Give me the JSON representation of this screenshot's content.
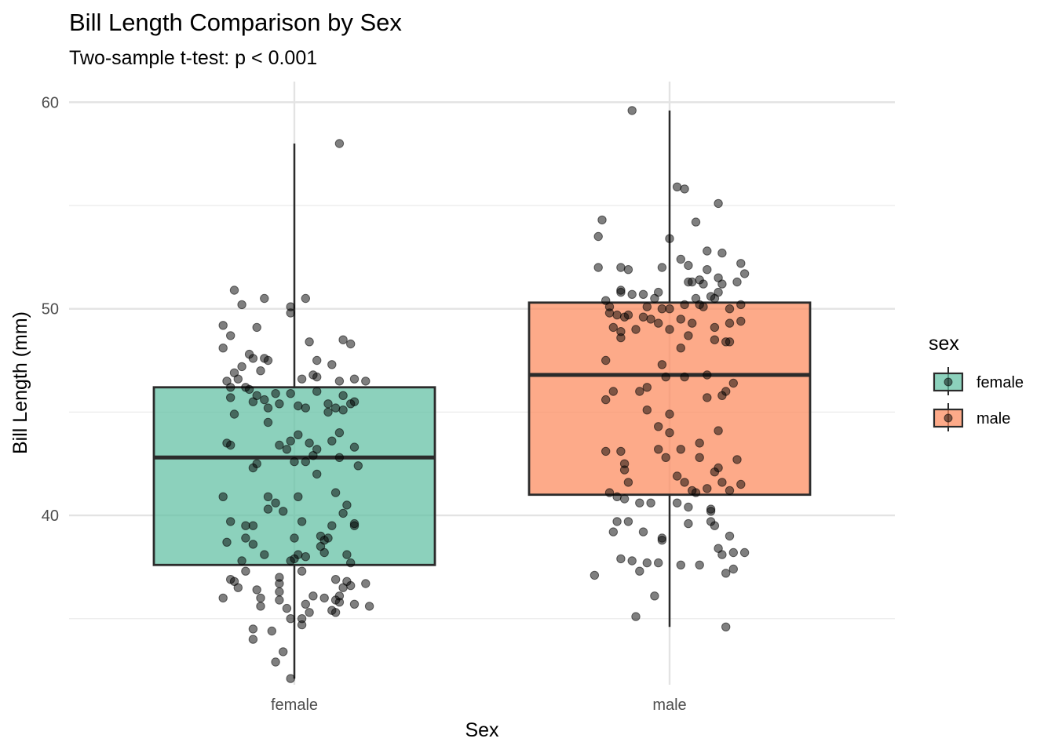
{
  "chart_data": {
    "type": "boxplot",
    "title": "Bill Length Comparison by Sex",
    "subtitle": "Two-sample t-test: p < 0.001",
    "xlabel": "Sex",
    "ylabel": "Bill Length (mm)",
    "ylim": [
      31.8,
      61.0
    ],
    "y_ticks": [
      40,
      50,
      60
    ],
    "y_minor_ticks": [
      35,
      45,
      55
    ],
    "grid": true,
    "categories": [
      "female",
      "male"
    ],
    "legend": {
      "title": "sex",
      "position": "right",
      "entries": [
        {
          "label": "female",
          "color": "#66c2a5"
        },
        {
          "label": "male",
          "color": "#fc8d62"
        }
      ]
    },
    "boxes": [
      {
        "category": "female",
        "color": "#66c2a5",
        "q1": 37.6,
        "median": 42.8,
        "q3": 46.2,
        "whisker_low": 32.1,
        "whisker_high": 58.0,
        "points": [
          [
            0.12,
            58.0
          ],
          [
            -0.16,
            50.9
          ],
          [
            -0.08,
            50.5
          ],
          [
            0.03,
            50.5
          ],
          [
            -0.14,
            50.2
          ],
          [
            -0.01,
            50.1
          ],
          [
            -0.01,
            49.8
          ],
          [
            -0.19,
            49.2
          ],
          [
            -0.1,
            49.1
          ],
          [
            -0.17,
            48.7
          ],
          [
            0.04,
            48.4
          ],
          [
            0.13,
            48.5
          ],
          [
            0.15,
            48.3
          ],
          [
            -0.19,
            48.1
          ],
          [
            -0.12,
            47.8
          ],
          [
            -0.08,
            47.6
          ],
          [
            -0.07,
            47.5
          ],
          [
            -0.11,
            47.6
          ],
          [
            0.06,
            47.5
          ],
          [
            0.1,
            47.3
          ],
          [
            -0.14,
            47.2
          ],
          [
            -0.16,
            46.9
          ],
          [
            -0.09,
            47.0
          ],
          [
            -0.15,
            46.6
          ],
          [
            -0.13,
            46.2
          ],
          [
            -0.18,
            46.5
          ],
          [
            0.02,
            46.6
          ],
          [
            0.05,
            46.8
          ],
          [
            0.06,
            46.7
          ],
          [
            0.12,
            46.5
          ],
          [
            0.16,
            46.6
          ],
          [
            0.19,
            46.5
          ],
          [
            -0.17,
            46.2
          ],
          [
            -0.12,
            46.1
          ],
          [
            -0.1,
            45.8
          ],
          [
            -0.05,
            45.9
          ],
          [
            -0.01,
            45.9
          ],
          [
            0.06,
            46.0
          ],
          [
            0.13,
            45.8
          ],
          [
            -0.17,
            45.7
          ],
          [
            -0.11,
            45.5
          ],
          [
            -0.08,
            45.6
          ],
          [
            -0.04,
            45.4
          ],
          [
            0.01,
            45.3
          ],
          [
            0.03,
            45.2
          ],
          [
            0.09,
            45.4
          ],
          [
            0.15,
            45.4
          ],
          [
            0.16,
            45.5
          ],
          [
            -0.07,
            45.2
          ],
          [
            0.11,
            45.2
          ],
          [
            0.13,
            45.1
          ],
          [
            0.09,
            45.0
          ],
          [
            -0.16,
            44.9
          ],
          [
            -0.07,
            44.5
          ],
          [
            0.12,
            44.0
          ],
          [
            0.1,
            43.6
          ],
          [
            0.01,
            43.9
          ],
          [
            0.04,
            43.5
          ],
          [
            0.06,
            43.2
          ],
          [
            0.16,
            43.3
          ],
          [
            -0.18,
            43.5
          ],
          [
            -0.17,
            43.4
          ],
          [
            -0.01,
            43.6
          ],
          [
            -0.04,
            43.4
          ],
          [
            -0.02,
            43.2
          ],
          [
            0.0,
            42.6
          ],
          [
            0.03,
            42.6
          ],
          [
            0.05,
            42.9
          ],
          [
            0.12,
            42.8
          ],
          [
            -0.1,
            42.5
          ],
          [
            -0.11,
            42.3
          ],
          [
            0.06,
            42.0
          ],
          [
            0.17,
            42.4
          ],
          [
            -0.07,
            40.9
          ],
          [
            -0.19,
            40.9
          ],
          [
            0.01,
            40.9
          ],
          [
            -0.05,
            40.6
          ],
          [
            0.14,
            40.5
          ],
          [
            -0.07,
            40.3
          ],
          [
            -0.03,
            40.2
          ],
          [
            0.11,
            41.1
          ],
          [
            0.13,
            40.1
          ],
          [
            -0.17,
            39.7
          ],
          [
            -0.13,
            39.5
          ],
          [
            -0.11,
            39.5
          ],
          [
            0.02,
            39.7
          ],
          [
            0.16,
            39.6
          ],
          [
            0.1,
            39.5
          ],
          [
            0.16,
            39.5
          ],
          [
            -0.18,
            38.7
          ],
          [
            -0.13,
            38.9
          ],
          [
            -0.11,
            38.6
          ],
          [
            0.0,
            38.9
          ],
          [
            0.07,
            39.0
          ],
          [
            0.08,
            38.8
          ],
          [
            0.09,
            38.9
          ],
          [
            -0.14,
            37.8
          ],
          [
            -0.08,
            38.1
          ],
          [
            0.01,
            38.1
          ],
          [
            0.03,
            38.0
          ],
          [
            0.07,
            38.5
          ],
          [
            0.08,
            38.2
          ],
          [
            0.14,
            38.1
          ],
          [
            -0.01,
            37.8
          ],
          [
            0.0,
            37.9
          ],
          [
            0.15,
            37.7
          ],
          [
            -0.13,
            37.3
          ],
          [
            0.02,
            37.3
          ],
          [
            -0.17,
            36.9
          ],
          [
            -0.16,
            36.8
          ],
          [
            -0.04,
            37.0
          ],
          [
            -0.04,
            36.7
          ],
          [
            0.11,
            36.9
          ],
          [
            0.14,
            36.8
          ],
          [
            0.15,
            36.6
          ],
          [
            0.19,
            36.7
          ],
          [
            -0.15,
            36.5
          ],
          [
            -0.1,
            36.4
          ],
          [
            0.13,
            36.5
          ],
          [
            -0.19,
            36.0
          ],
          [
            -0.09,
            36.0
          ],
          [
            -0.04,
            35.9
          ],
          [
            -0.04,
            36.3
          ],
          [
            0.05,
            36.1
          ],
          [
            0.08,
            36.0
          ],
          [
            0.11,
            35.9
          ],
          [
            0.12,
            35.8
          ],
          [
            0.12,
            36.1
          ],
          [
            0.16,
            35.7
          ],
          [
            0.2,
            35.6
          ],
          [
            -0.09,
            35.6
          ],
          [
            -0.02,
            35.5
          ],
          [
            0.03,
            35.7
          ],
          [
            0.1,
            35.4
          ],
          [
            0.04,
            35.3
          ],
          [
            -0.01,
            35.0
          ],
          [
            0.02,
            35.0
          ],
          [
            0.11,
            35.3
          ],
          [
            0.02,
            34.7
          ],
          [
            -0.11,
            34.5
          ],
          [
            -0.06,
            34.4
          ],
          [
            -0.11,
            34.0
          ],
          [
            -0.03,
            33.4
          ],
          [
            -0.05,
            32.9
          ],
          [
            -0.01,
            32.1
          ]
        ]
      },
      {
        "category": "male",
        "color": "#fc8d62",
        "q1": 41.0,
        "median": 46.8,
        "q3": 50.3,
        "whisker_low": 34.6,
        "whisker_high": 59.6,
        "points": [
          [
            -0.1,
            59.6
          ],
          [
            0.02,
            55.9
          ],
          [
            0.04,
            55.8
          ],
          [
            0.13,
            55.1
          ],
          [
            -0.18,
            54.3
          ],
          [
            0.07,
            54.2
          ],
          [
            -0.19,
            53.5
          ],
          [
            -0.0,
            53.4
          ],
          [
            0.03,
            52.4
          ],
          [
            0.1,
            52.8
          ],
          [
            0.14,
            52.7
          ],
          [
            -0.19,
            52.0
          ],
          [
            -0.13,
            52.0
          ],
          [
            -0.11,
            51.9
          ],
          [
            -0.02,
            52.0
          ],
          [
            0.05,
            52.1
          ],
          [
            0.1,
            51.9
          ],
          [
            0.19,
            52.2
          ],
          [
            0.2,
            51.7
          ],
          [
            0.08,
            51.4
          ],
          [
            0.05,
            51.3
          ],
          [
            0.06,
            51.3
          ],
          [
            0.09,
            51.2
          ],
          [
            0.13,
            51.5
          ],
          [
            0.14,
            51.2
          ],
          [
            0.18,
            51.3
          ],
          [
            -0.13,
            50.9
          ],
          [
            -0.13,
            50.8
          ],
          [
            -0.1,
            50.7
          ],
          [
            -0.07,
            50.7
          ],
          [
            0.13,
            50.8
          ],
          [
            -0.03,
            50.8
          ],
          [
            0.11,
            50.6
          ],
          [
            0.12,
            50.5
          ],
          [
            -0.17,
            50.4
          ],
          [
            0.07,
            50.5
          ],
          [
            -0.04,
            50.5
          ],
          [
            -0.02,
            50.0
          ],
          [
            0.0,
            50.0
          ],
          [
            -0.06,
            50.1
          ],
          [
            0.04,
            50.2
          ],
          [
            -0.16,
            50.1
          ],
          [
            0.08,
            50.2
          ],
          [
            0.09,
            50.1
          ],
          [
            0.16,
            50.0
          ],
          [
            0.19,
            50.2
          ],
          [
            -0.16,
            49.8
          ],
          [
            -0.14,
            49.7
          ],
          [
            -0.11,
            49.7
          ],
          [
            -0.12,
            49.6
          ],
          [
            -0.07,
            49.6
          ],
          [
            -0.05,
            49.5
          ],
          [
            -0.03,
            49.3
          ],
          [
            0.03,
            49.5
          ],
          [
            0.06,
            49.3
          ],
          [
            0.12,
            49.1
          ],
          [
            0.16,
            49.3
          ],
          [
            0.19,
            49.4
          ],
          [
            -0.15,
            49.1
          ],
          [
            -0.13,
            48.9
          ],
          [
            -0.13,
            48.6
          ],
          [
            -0.09,
            49.0
          ],
          [
            0.0,
            49.0
          ],
          [
            0.05,
            48.7
          ],
          [
            0.12,
            48.5
          ],
          [
            0.15,
            48.4
          ],
          [
            0.16,
            48.4
          ],
          [
            0.03,
            48.1
          ],
          [
            -0.17,
            47.5
          ],
          [
            -0.02,
            47.3
          ],
          [
            0.04,
            46.7
          ],
          [
            -0.15,
            46.0
          ],
          [
            -0.08,
            46.0
          ],
          [
            -0.06,
            46.2
          ],
          [
            -0.01,
            46.7
          ],
          [
            0.1,
            46.8
          ],
          [
            0.17,
            46.4
          ],
          [
            0.15,
            46.0
          ],
          [
            -0.17,
            45.6
          ],
          [
            0.1,
            45.7
          ],
          [
            0.14,
            45.8
          ],
          [
            -0.06,
            45.1
          ],
          [
            0.0,
            44.9
          ],
          [
            -0.03,
            44.3
          ],
          [
            0.0,
            44.0
          ],
          [
            0.13,
            44.1
          ],
          [
            0.08,
            43.5
          ],
          [
            0.03,
            43.2
          ],
          [
            -0.03,
            43.2
          ],
          [
            -0.17,
            43.1
          ],
          [
            -0.13,
            43.1
          ],
          [
            -0.01,
            42.8
          ],
          [
            0.08,
            42.8
          ],
          [
            0.18,
            42.7
          ],
          [
            0.13,
            42.3
          ],
          [
            0.12,
            42.1
          ],
          [
            -0.12,
            42.5
          ],
          [
            -0.12,
            42.2
          ],
          [
            -0.11,
            41.6
          ],
          [
            0.14,
            41.6
          ],
          [
            0.19,
            41.5
          ],
          [
            0.02,
            41.9
          ],
          [
            0.04,
            41.6
          ],
          [
            0.06,
            41.2
          ],
          [
            0.07,
            41.1
          ],
          [
            0.1,
            41.3
          ],
          [
            0.16,
            41.2
          ],
          [
            -0.16,
            41.1
          ],
          [
            -0.14,
            40.9
          ],
          [
            -0.12,
            40.8
          ],
          [
            -0.08,
            40.6
          ],
          [
            -0.05,
            40.6
          ],
          [
            0.02,
            40.6
          ],
          [
            0.05,
            40.4
          ],
          [
            0.11,
            40.3
          ],
          [
            0.11,
            40.2
          ],
          [
            -0.14,
            39.7
          ],
          [
            -0.15,
            39.2
          ],
          [
            -0.11,
            39.7
          ],
          [
            -0.07,
            39.2
          ],
          [
            -0.02,
            38.9
          ],
          [
            -0.02,
            38.8
          ],
          [
            0.05,
            39.6
          ],
          [
            0.11,
            39.7
          ],
          [
            0.12,
            39.5
          ],
          [
            0.16,
            39.0
          ],
          [
            0.13,
            38.4
          ],
          [
            0.14,
            38.1
          ],
          [
            0.17,
            38.2
          ],
          [
            0.2,
            38.2
          ],
          [
            -0.13,
            37.9
          ],
          [
            -0.1,
            37.8
          ],
          [
            -0.06,
            37.7
          ],
          [
            -0.03,
            37.7
          ],
          [
            0.08,
            37.6
          ],
          [
            0.15,
            37.2
          ],
          [
            0.17,
            37.4
          ],
          [
            -0.2,
            37.1
          ],
          [
            -0.08,
            37.3
          ],
          [
            -0.04,
            36.1
          ],
          [
            0.03,
            37.6
          ],
          [
            -0.09,
            35.1
          ],
          [
            0.15,
            34.6
          ]
        ]
      }
    ]
  }
}
